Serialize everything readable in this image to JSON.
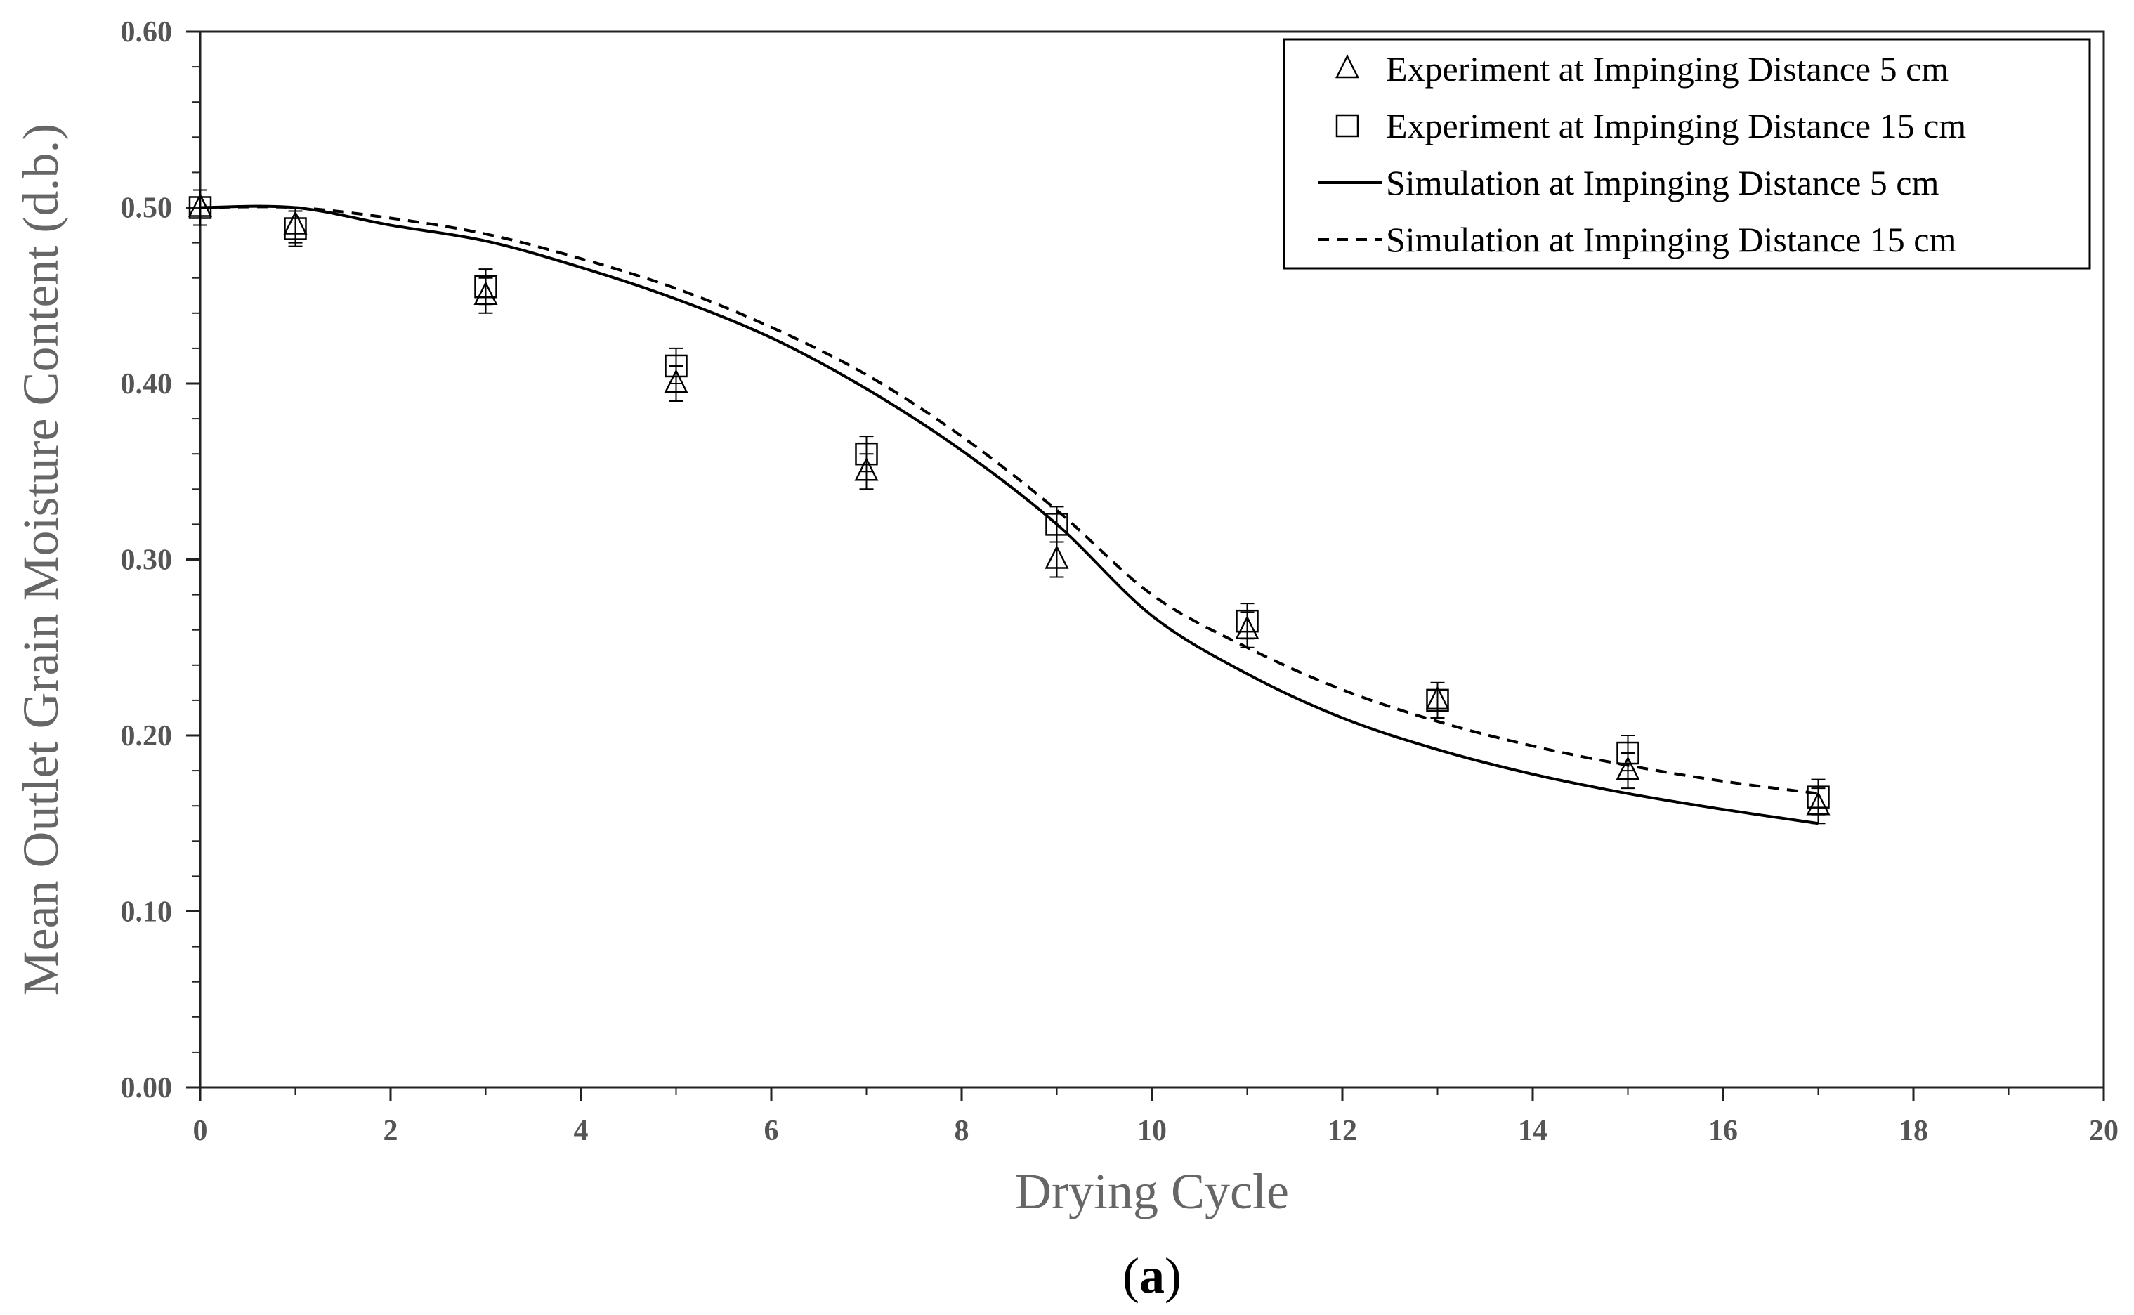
{
  "chart_data": {
    "type": "scatter",
    "panel_label": "(a)",
    "panel_label_letter": "a",
    "xlabel": "Drying Cycle",
    "ylabel": "Mean Outlet Grain Moisture Content (d.b.)",
    "xlim": [
      0,
      20
    ],
    "ylim": [
      0,
      0.6
    ],
    "x_ticks": [
      "0",
      "2",
      "4",
      "6",
      "8",
      "10",
      "12",
      "14",
      "16",
      "18",
      "20"
    ],
    "y_ticks": [
      "0.00",
      "0.10",
      "0.20",
      "0.30",
      "0.40",
      "0.50",
      "0.60"
    ],
    "grid": false,
    "legend_position": "top-right",
    "series": [
      {
        "name": "Experiment at Impinging Distance 5 cm",
        "kind": "markers",
        "marker": "triangle",
        "x": [
          0,
          1,
          3,
          5,
          7,
          9,
          11,
          13,
          15,
          17
        ],
        "y": [
          0.5,
          0.49,
          0.45,
          0.4,
          0.35,
          0.3,
          0.26,
          0.22,
          0.18,
          0.16
        ],
        "error": 0.01
      },
      {
        "name": "Experiment at Impinging Distance 15 cm",
        "kind": "markers",
        "marker": "square",
        "x": [
          0,
          1,
          3,
          5,
          7,
          9,
          11,
          13,
          15,
          17
        ],
        "y": [
          0.5,
          0.488,
          0.455,
          0.41,
          0.36,
          0.32,
          0.265,
          0.22,
          0.19,
          0.165
        ],
        "error": 0.01
      },
      {
        "name": "Simulation at Impinging Distance 5 cm",
        "kind": "line",
        "dash": "solid",
        "x": [
          0,
          1,
          2,
          3,
          4,
          5,
          6,
          7,
          8,
          9,
          10,
          11,
          12,
          13,
          14,
          15,
          16,
          17
        ],
        "y": [
          0.5,
          0.5,
          0.49,
          0.481,
          0.466,
          0.448,
          0.426,
          0.397,
          0.362,
          0.32,
          0.268,
          0.235,
          0.21,
          0.192,
          0.178,
          0.167,
          0.158,
          0.15
        ]
      },
      {
        "name": "Simulation at Impinging Distance 15 cm",
        "kind": "line",
        "dash": "dashed",
        "x": [
          0,
          1,
          2,
          3,
          4,
          5,
          6,
          7,
          8,
          9,
          10,
          11,
          12,
          13,
          14,
          15,
          16,
          17
        ],
        "y": [
          0.5,
          0.5,
          0.494,
          0.485,
          0.471,
          0.454,
          0.432,
          0.405,
          0.37,
          0.328,
          0.28,
          0.25,
          0.226,
          0.208,
          0.194,
          0.183,
          0.174,
          0.167
        ]
      }
    ]
  }
}
